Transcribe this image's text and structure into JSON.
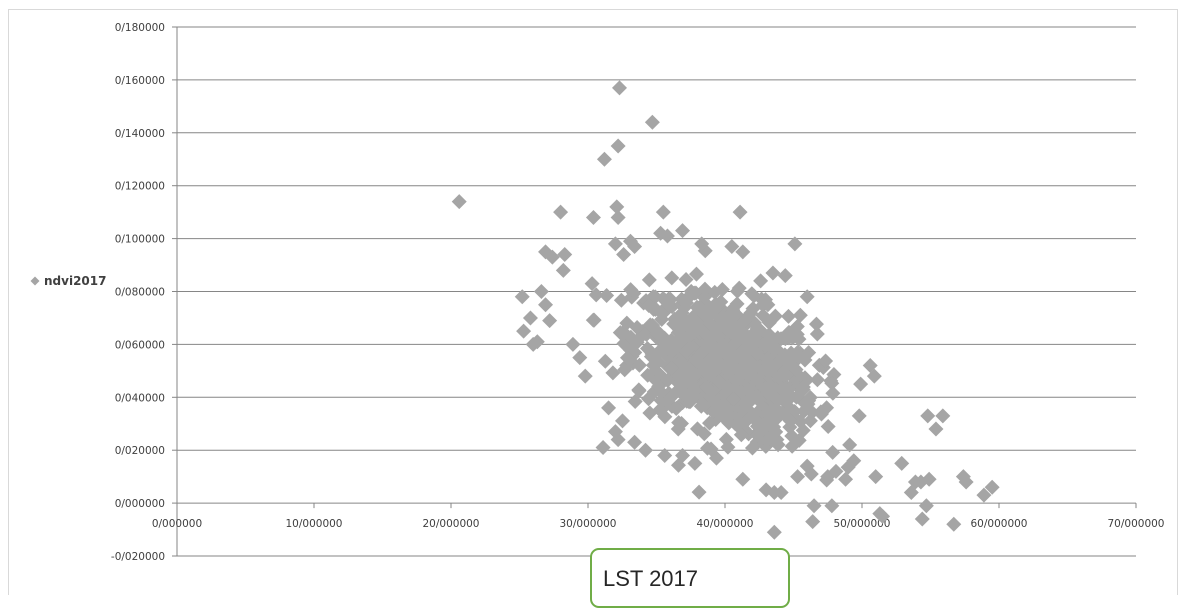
{
  "chart_data": {
    "type": "scatter",
    "xlabel": "LST 2017",
    "ylabel": "",
    "xlim": [
      0,
      70
    ],
    "ylim": [
      -0.02,
      0.18
    ],
    "grid": true,
    "legend_position": "left",
    "series": [
      {
        "name": "ndvi2017",
        "color": "#a5a5a5",
        "marker": "diamond",
        "points": [
          [
            20.6,
            0.114
          ],
          [
            32.3,
            0.157
          ],
          [
            34.7,
            0.144
          ],
          [
            31.2,
            0.13
          ],
          [
            32.2,
            0.135
          ],
          [
            28.0,
            0.11
          ],
          [
            30.4,
            0.108
          ],
          [
            32.1,
            0.112
          ],
          [
            32.2,
            0.108
          ],
          [
            35.5,
            0.11
          ],
          [
            41.1,
            0.11
          ],
          [
            26.9,
            0.095
          ],
          [
            27.4,
            0.093
          ],
          [
            28.3,
            0.094
          ],
          [
            32.0,
            0.098
          ],
          [
            32.6,
            0.094
          ],
          [
            33.1,
            0.099
          ],
          [
            33.4,
            0.097
          ],
          [
            35.3,
            0.102
          ],
          [
            35.8,
            0.101
          ],
          [
            36.9,
            0.103
          ],
          [
            38.3,
            0.098
          ],
          [
            40.5,
            0.097
          ],
          [
            41.3,
            0.095
          ],
          [
            45.1,
            0.098
          ],
          [
            25.2,
            0.078
          ],
          [
            25.3,
            0.065
          ],
          [
            25.8,
            0.07
          ],
          [
            26.0,
            0.06
          ],
          [
            26.3,
            0.061
          ],
          [
            26.6,
            0.08
          ],
          [
            26.9,
            0.075
          ],
          [
            27.2,
            0.069
          ],
          [
            28.2,
            0.088
          ],
          [
            28.9,
            0.06
          ],
          [
            29.4,
            0.055
          ],
          [
            29.8,
            0.048
          ],
          [
            30.3,
            0.083
          ],
          [
            31.1,
            0.021
          ],
          [
            31.5,
            0.036
          ],
          [
            32.0,
            0.027
          ],
          [
            32.2,
            0.024
          ],
          [
            33.4,
            0.023
          ],
          [
            34.2,
            0.02
          ],
          [
            35.6,
            0.018
          ],
          [
            36.9,
            0.018
          ],
          [
            37.8,
            0.015
          ],
          [
            41.3,
            0.009
          ],
          [
            43.0,
            0.005
          ],
          [
            43.6,
            0.004
          ],
          [
            44.1,
            0.004
          ],
          [
            45.3,
            0.01
          ],
          [
            46.3,
            0.011
          ],
          [
            46.0,
            0.014
          ],
          [
            47.5,
            0.01
          ],
          [
            48.1,
            0.012
          ],
          [
            48.8,
            0.009
          ],
          [
            49.4,
            0.016
          ],
          [
            49.8,
            0.033
          ],
          [
            49.1,
            0.022
          ],
          [
            49.9,
            0.045
          ],
          [
            50.6,
            0.052
          ],
          [
            50.9,
            0.048
          ],
          [
            51.0,
            0.01
          ],
          [
            51.3,
            -0.004
          ],
          [
            51.5,
            -0.005
          ],
          [
            52.9,
            0.015
          ],
          [
            53.6,
            0.004
          ],
          [
            53.9,
            0.008
          ],
          [
            54.3,
            0.008
          ],
          [
            54.4,
            -0.006
          ],
          [
            54.7,
            -0.001
          ],
          [
            54.8,
            0.033
          ],
          [
            55.4,
            0.028
          ],
          [
            55.9,
            0.033
          ],
          [
            54.9,
            0.009
          ],
          [
            56.7,
            -0.008
          ],
          [
            57.4,
            0.01
          ],
          [
            57.6,
            0.008
          ],
          [
            58.9,
            0.003
          ],
          [
            59.5,
            0.006
          ],
          [
            43.6,
            -0.011
          ],
          [
            46.4,
            -0.007
          ],
          [
            46.5,
            -0.001
          ],
          [
            47.8,
            -0.001
          ],
          [
            46.0,
            0.078
          ],
          [
            45.5,
            0.071
          ],
          [
            44.4,
            0.086
          ],
          [
            43.5,
            0.087
          ],
          [
            42.6,
            0.084
          ]
        ],
        "dense_cloud": {
          "x_center": 40.0,
          "x_sd": 3.3,
          "y_center": 0.052,
          "y_sd": 0.014,
          "n": 900
        }
      }
    ],
    "x_ticks": [
      "0/000000",
      "10/000000",
      "20/000000",
      "30/000000",
      "40/000000",
      "50/000000",
      "60/000000",
      "70/000000"
    ],
    "y_ticks": [
      "0/180000",
      "0/160000",
      "0/140000",
      "0/120000",
      "0/100000",
      "0/080000",
      "0/060000",
      "0/040000",
      "0/020000",
      "0/000000",
      "-0/020000"
    ]
  }
}
